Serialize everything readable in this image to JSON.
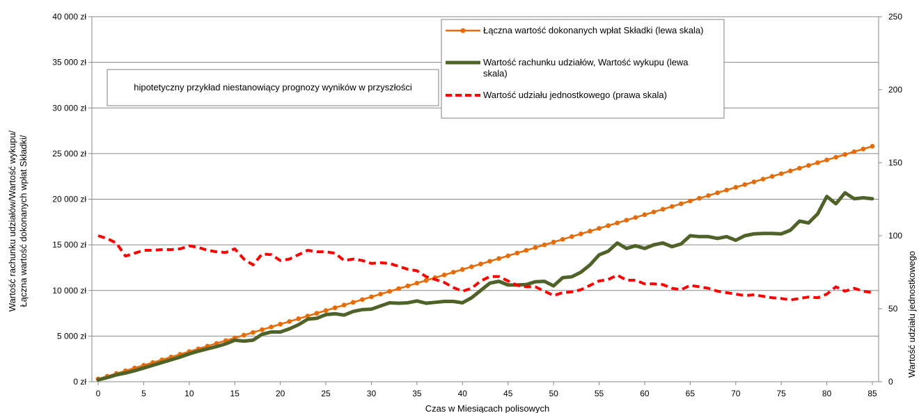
{
  "chart_data": {
    "type": "line",
    "title": "",
    "xlabel": "Czas w Miesiącach polisowych",
    "ylabel_left_line1": "Wartość rachunku udziałów/Wartość wykupu/",
    "ylabel_left_line2": "Łączna wartość dokonanych wpłat Składki/",
    "ylabel_right": "Wartość udziału jednostkowego",
    "xlim": [
      0,
      85
    ],
    "ylim_left": [
      0,
      40000
    ],
    "ylim_right": [
      0,
      250
    ],
    "x_ticks": [
      "0",
      "5",
      "10",
      "15",
      "20",
      "25",
      "30",
      "35",
      "40",
      "45",
      "50",
      "55",
      "60",
      "65",
      "70",
      "75",
      "80",
      "85"
    ],
    "y_left_ticks": [
      "0 zł",
      "5 000 zł",
      "10 000 zł",
      "15 000 zł",
      "20 000 zł",
      "25 000 zł",
      "30 000 zł",
      "35 000 zł",
      "40 000 zł"
    ],
    "y_right_ticks": [
      "0",
      "50",
      "100",
      "150",
      "200",
      "250"
    ],
    "grid": "horizontal",
    "legend_position": "top-right",
    "note": "hipotetyczny przykład niestanowiący prognozy wyników w przyszłości",
    "x": [
      0,
      1,
      2,
      3,
      4,
      5,
      6,
      7,
      8,
      9,
      10,
      11,
      12,
      13,
      14,
      15,
      16,
      17,
      18,
      19,
      20,
      21,
      22,
      23,
      24,
      25,
      26,
      27,
      28,
      29,
      30,
      31,
      32,
      33,
      34,
      35,
      36,
      37,
      38,
      39,
      40,
      41,
      42,
      43,
      44,
      45,
      46,
      47,
      48,
      49,
      50,
      51,
      52,
      53,
      54,
      55,
      56,
      57,
      58,
      59,
      60,
      61,
      62,
      63,
      64,
      65,
      66,
      67,
      68,
      69,
      70,
      71,
      72,
      73,
      74,
      75,
      76,
      77,
      78,
      79,
      80,
      81,
      82,
      83,
      84,
      85
    ],
    "series": [
      {
        "name": "Łączna wartość dokonanych wpłat Składki (lewa skala)",
        "axis": "left",
        "color": "#e46c0a",
        "marker": "circle",
        "values": [
          300,
          600,
          900,
          1200,
          1500,
          1800,
          2100,
          2400,
          2700,
          3000,
          3300,
          3600,
          3900,
          4200,
          4500,
          4800,
          5100,
          5400,
          5700,
          6000,
          6300,
          6600,
          6900,
          7200,
          7500,
          7800,
          8100,
          8400,
          8700,
          9000,
          9300,
          9600,
          9900,
          10200,
          10500,
          10800,
          11100,
          11400,
          11700,
          12000,
          12300,
          12600,
          12900,
          13200,
          13500,
          13800,
          14100,
          14400,
          14700,
          15000,
          15300,
          15600,
          15900,
          16200,
          16500,
          16800,
          17100,
          17400,
          17700,
          18000,
          18300,
          18600,
          18900,
          19200,
          19500,
          19800,
          20100,
          20400,
          20700,
          21000,
          21300,
          21600,
          21900,
          22200,
          22500,
          22800,
          23100,
          23400,
          23700,
          24000,
          24300,
          24600,
          24900,
          25200,
          25500,
          25800
        ]
      },
      {
        "name": "Wartość rachunku udziałów, Wartość wykupu (lewa skala)",
        "axis": "left",
        "color": "#4f6228",
        "marker": "none",
        "values": [
          200,
          450,
          750,
          950,
          1200,
          1500,
          1800,
          2100,
          2400,
          2700,
          3050,
          3350,
          3600,
          3850,
          4150,
          4550,
          4450,
          4550,
          5200,
          5450,
          5450,
          5800,
          6250,
          6850,
          6950,
          7350,
          7450,
          7300,
          7700,
          7900,
          7950,
          8300,
          8650,
          8600,
          8650,
          8850,
          8600,
          8700,
          8800,
          8800,
          8650,
          9200,
          10000,
          10800,
          11000,
          10600,
          10600,
          10650,
          10950,
          11000,
          10500,
          11400,
          11500,
          12000,
          12800,
          13900,
          14300,
          15200,
          14600,
          14900,
          14600,
          15000,
          15200,
          14800,
          15100,
          16000,
          15900,
          15900,
          15700,
          15900,
          15500,
          16000,
          16200,
          16250,
          16250,
          16200,
          16600,
          17600,
          17400,
          18400,
          20300,
          19500,
          20700,
          20050,
          20150,
          20050
        ]
      },
      {
        "name": "Wartość udziału jednostkowego (prawa skala)",
        "axis": "right",
        "color": "#ff0000",
        "marker": "none",
        "dashed": true,
        "values": [
          100,
          98,
          95,
          86,
          88,
          90,
          90,
          90.5,
          90.5,
          91,
          93,
          92,
          90,
          89,
          88.5,
          91,
          84,
          80,
          87.5,
          87,
          83,
          84,
          87,
          90,
          89,
          89,
          88,
          83,
          84,
          83,
          81,
          81.5,
          81,
          79,
          77,
          76,
          72,
          70,
          68,
          64.5,
          62,
          64,
          69,
          72,
          72,
          69,
          66,
          65,
          65,
          62,
          59,
          61,
          61.5,
          63,
          66,
          69,
          70,
          73,
          69.5,
          69.5,
          67,
          67,
          66.5,
          64,
          63,
          66,
          65,
          64,
          62,
          61,
          60,
          59,
          59.5,
          58.5,
          57.5,
          57,
          56,
          57,
          58,
          57.5,
          60,
          65,
          62,
          64,
          62,
          61
        ]
      }
    ]
  }
}
